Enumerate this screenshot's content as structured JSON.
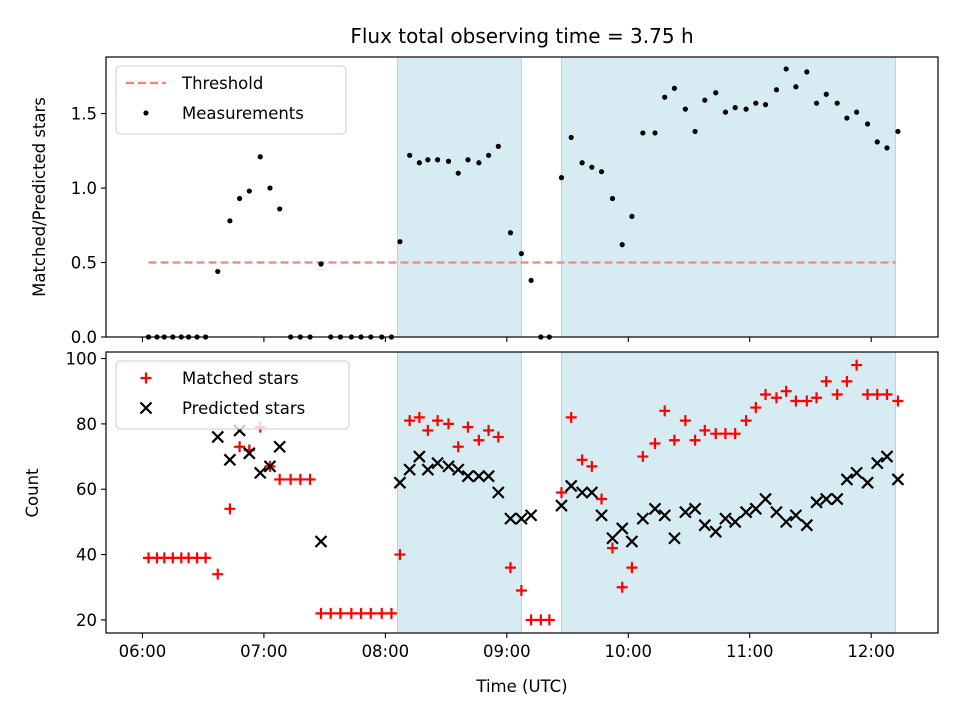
{
  "chart_data": {
    "type": "scatter",
    "title": "Flux total observing time = 3.75 h",
    "xlabel": "Time (UTC)",
    "x_axis": {
      "range_hours": [
        5.7,
        12.55
      ],
      "ticks": [
        6,
        7,
        8,
        9,
        10,
        11,
        12
      ],
      "tick_labels": [
        "06:00",
        "07:00",
        "08:00",
        "09:00",
        "10:00",
        "11:00",
        "12:00"
      ]
    },
    "observing_windows_hours": [
      [
        8.1,
        9.12
      ],
      [
        9.45,
        12.2
      ]
    ],
    "window_color": "#add8e6",
    "panels": [
      {
        "ylabel": "Matched/Predicted stars",
        "ylim": [
          0,
          1.88
        ],
        "yticks": [
          0.0,
          0.5,
          1.0,
          1.5
        ],
        "ytick_labels": [
          "0.0",
          "0.5",
          "1.0",
          "1.5"
        ],
        "threshold": {
          "name": "Threshold",
          "value": 0.5,
          "x_range_hours": [
            6.05,
            12.2
          ],
          "color": "#ff7f7f"
        },
        "series": [
          {
            "name": "Measurements",
            "marker": "dot",
            "color": "#000000",
            "x": [
              6.05,
              6.12,
              6.18,
              6.25,
              6.32,
              6.38,
              6.45,
              6.52,
              6.62,
              6.72,
              6.8,
              6.88,
              6.97,
              7.05,
              7.13,
              7.22,
              7.3,
              7.38,
              7.47,
              7.55,
              7.63,
              7.72,
              7.8,
              7.88,
              7.97,
              8.05,
              8.12,
              8.2,
              8.28,
              8.35,
              8.43,
              8.52,
              8.6,
              8.68,
              8.77,
              8.85,
              8.93,
              9.03,
              9.12,
              9.2,
              9.28,
              9.35,
              9.45,
              9.53,
              9.62,
              9.7,
              9.78,
              9.87,
              9.95,
              10.03,
              10.12,
              10.22,
              10.3,
              10.38,
              10.47,
              10.55,
              10.63,
              10.72,
              10.8,
              10.88,
              10.97,
              11.05,
              11.13,
              11.22,
              11.3,
              11.38,
              11.47,
              11.55,
              11.63,
              11.72,
              11.8,
              11.88,
              11.97,
              12.05,
              12.13,
              12.22
            ],
            "y": [
              0,
              0,
              0,
              0,
              0,
              0,
              0,
              0,
              0.44,
              0.78,
              0.93,
              0.98,
              1.21,
              1.0,
              0.86,
              0,
              0,
              0,
              0.49,
              0,
              0,
              0,
              0,
              0,
              0,
              0,
              0.64,
              1.22,
              1.17,
              1.19,
              1.19,
              1.18,
              1.1,
              1.19,
              1.17,
              1.22,
              1.28,
              0.7,
              0.56,
              0.38,
              0,
              0,
              1.07,
              1.34,
              1.17,
              1.14,
              1.11,
              0.93,
              0.62,
              0.81,
              1.37,
              1.37,
              1.61,
              1.67,
              1.53,
              1.38,
              1.59,
              1.64,
              1.51,
              1.54,
              1.53,
              1.57,
              1.56,
              1.66,
              1.8,
              1.68,
              1.78,
              1.57,
              1.63,
              1.57,
              1.47,
              1.51,
              1.43,
              1.31,
              1.27,
              1.38
            ]
          }
        ]
      },
      {
        "ylabel": "Count",
        "ylim": [
          16,
          102
        ],
        "yticks": [
          20,
          40,
          60,
          80,
          100
        ],
        "ytick_labels": [
          "20",
          "40",
          "60",
          "80",
          "100"
        ],
        "series": [
          {
            "name": "Matched stars",
            "marker": "plus",
            "color": "#ff0000",
            "x": [
              6.05,
              6.12,
              6.18,
              6.25,
              6.32,
              6.38,
              6.45,
              6.52,
              6.62,
              6.72,
              6.8,
              6.88,
              6.97,
              7.05,
              7.13,
              7.22,
              7.3,
              7.38,
              7.47,
              7.55,
              7.63,
              7.72,
              7.8,
              7.88,
              7.97,
              8.05,
              8.12,
              8.2,
              8.28,
              8.35,
              8.43,
              8.52,
              8.6,
              8.68,
              8.77,
              8.85,
              8.93,
              9.03,
              9.12,
              9.2,
              9.28,
              9.35,
              9.45,
              9.53,
              9.62,
              9.7,
              9.78,
              9.87,
              9.95,
              10.03,
              10.12,
              10.22,
              10.3,
              10.38,
              10.47,
              10.55,
              10.63,
              10.72,
              10.8,
              10.88,
              10.97,
              11.05,
              11.13,
              11.22,
              11.3,
              11.38,
              11.47,
              11.55,
              11.63,
              11.72,
              11.8,
              11.88,
              11.97,
              12.05,
              12.13,
              12.22
            ],
            "y": [
              39,
              39,
              39,
              39,
              39,
              39,
              39,
              39,
              34,
              54,
              73,
              72,
              79,
              67,
              63,
              63,
              63,
              63,
              22,
              22,
              22,
              22,
              22,
              22,
              22,
              22,
              40,
              81,
              82,
              78,
              81,
              80,
              73,
              79,
              75,
              78,
              76,
              36,
              29,
              20,
              20,
              20,
              59,
              82,
              69,
              67,
              57,
              42,
              30,
              36,
              70,
              74,
              84,
              75,
              81,
              75,
              78,
              77,
              77,
              77,
              81,
              85,
              89,
              88,
              90,
              87,
              87,
              88,
              93,
              89,
              93,
              98,
              89,
              89,
              89,
              87
            ]
          },
          {
            "name": "Predicted stars",
            "marker": "x",
            "color": "#000000",
            "x": [
              6.62,
              6.72,
              6.8,
              6.88,
              6.97,
              7.05,
              7.13,
              7.47,
              8.12,
              8.2,
              8.28,
              8.35,
              8.43,
              8.52,
              8.6,
              8.68,
              8.77,
              8.85,
              8.93,
              9.03,
              9.12,
              9.2,
              9.45,
              9.53,
              9.62,
              9.7,
              9.78,
              9.87,
              9.95,
              10.03,
              10.12,
              10.22,
              10.3,
              10.38,
              10.47,
              10.55,
              10.63,
              10.72,
              10.8,
              10.88,
              10.97,
              11.05,
              11.13,
              11.22,
              11.3,
              11.38,
              11.47,
              11.55,
              11.63,
              11.72,
              11.8,
              11.88,
              11.97,
              12.05,
              12.13,
              12.22
            ],
            "y": [
              76,
              69,
              78,
              71,
              65,
              67,
              73,
              44,
              62,
              66,
              70,
              66,
              68,
              67,
              66,
              64,
              64,
              64,
              59,
              51,
              51,
              52,
              55,
              61,
              59,
              59,
              52,
              45,
              48,
              44,
              51,
              54,
              52,
              45,
              53,
              54,
              49,
              47,
              51,
              50,
              53,
              54,
              57,
              53,
              50,
              52,
              49,
              56,
              57,
              57,
              63,
              65,
              62,
              68,
              70,
              63
            ]
          }
        ]
      }
    ]
  }
}
